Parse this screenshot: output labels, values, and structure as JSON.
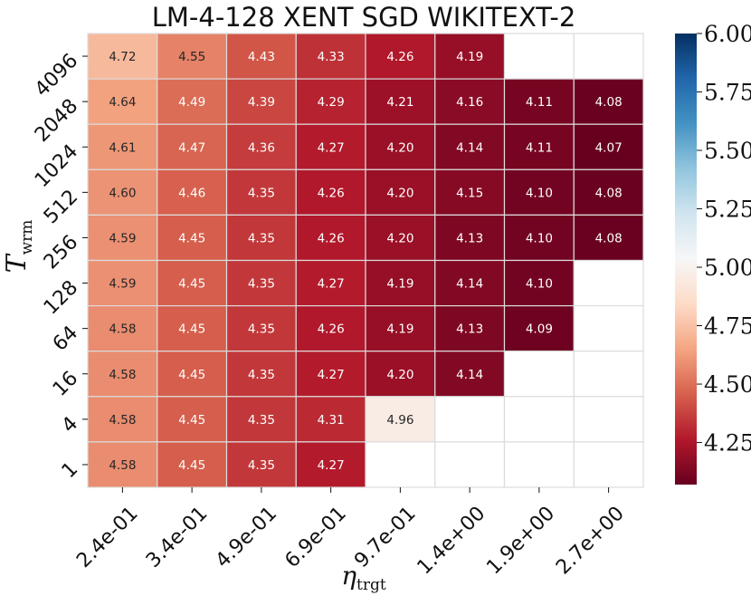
{
  "chart_data": {
    "type": "heatmap",
    "title": "LM-4-128 XENT SGD WIKITEXT-2",
    "xlabel": "η",
    "xlabel_sub": "trgt",
    "ylabel": "T",
    "ylabel_sub": "wrm",
    "x_categories": [
      "2.4e-01",
      "3.4e-01",
      "4.9e-01",
      "6.9e-01",
      "9.7e-01",
      "1.4e+00",
      "1.9e+00",
      "2.7e+00"
    ],
    "y_categories": [
      "4096",
      "2048",
      "1024",
      "512",
      "256",
      "128",
      "64",
      "16",
      "4",
      "1"
    ],
    "values": [
      [
        "4.72",
        "4.55",
        "4.43",
        "4.33",
        "4.26",
        "4.19",
        null,
        null
      ],
      [
        "4.64",
        "4.49",
        "4.39",
        "4.29",
        "4.21",
        "4.16",
        "4.11",
        "4.08"
      ],
      [
        "4.61",
        "4.47",
        "4.36",
        "4.27",
        "4.20",
        "4.14",
        "4.11",
        "4.07"
      ],
      [
        "4.60",
        "4.46",
        "4.35",
        "4.26",
        "4.20",
        "4.15",
        "4.10",
        "4.08"
      ],
      [
        "4.59",
        "4.45",
        "4.35",
        "4.26",
        "4.20",
        "4.13",
        "4.10",
        "4.08"
      ],
      [
        "4.59",
        "4.45",
        "4.35",
        "4.27",
        "4.19",
        "4.14",
        "4.10",
        null
      ],
      [
        "4.58",
        "4.45",
        "4.35",
        "4.26",
        "4.19",
        "4.13",
        "4.09",
        null
      ],
      [
        "4.58",
        "4.45",
        "4.35",
        "4.27",
        "4.20",
        "4.14",
        null,
        null
      ],
      [
        "4.58",
        "4.45",
        "4.35",
        "4.31",
        "4.96",
        null,
        null,
        null
      ],
      [
        "4.58",
        "4.45",
        "4.35",
        "4.27",
        null,
        null,
        null,
        null
      ]
    ],
    "colorbar": {
      "colormap": "RdBu",
      "min": 4.07,
      "max": 6.0,
      "ticks": [
        "4.25",
        "4.50",
        "4.75",
        "5.00",
        "5.25",
        "5.50",
        "5.75",
        "6.00"
      ]
    }
  }
}
